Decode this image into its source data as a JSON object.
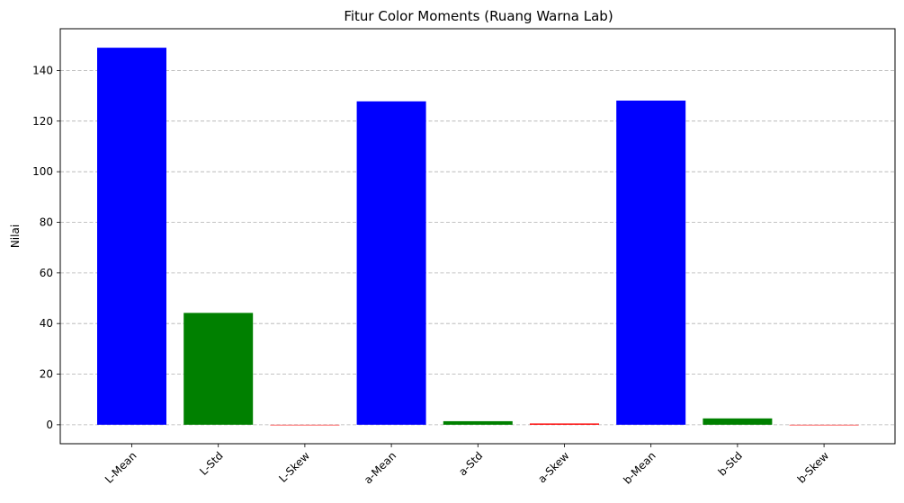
{
  "chart_data": {
    "type": "bar",
    "title": "Fitur Color Moments (Ruang Warna Lab)",
    "xlabel": "",
    "ylabel": "Nilai",
    "categories": [
      "L-Mean",
      "L-Std",
      "L-Skew",
      "a-Mean",
      "a-Std",
      "a-Skew",
      "b-Mean",
      "b-Std",
      "b-Skew"
    ],
    "values": [
      149.0,
      44.2,
      -0.1,
      127.8,
      1.4,
      0.5,
      128.1,
      2.5,
      -0.1
    ],
    "colors": [
      "#0000ff",
      "#008000",
      "#ff0000",
      "#0000ff",
      "#008000",
      "#ff0000",
      "#0000ff",
      "#008000",
      "#ff0000"
    ],
    "ylim": [
      -7.5,
      156.5
    ],
    "yticks": [
      0,
      20,
      40,
      60,
      80,
      100,
      120,
      140
    ],
    "grid": "y-dashed",
    "legend": "none"
  }
}
